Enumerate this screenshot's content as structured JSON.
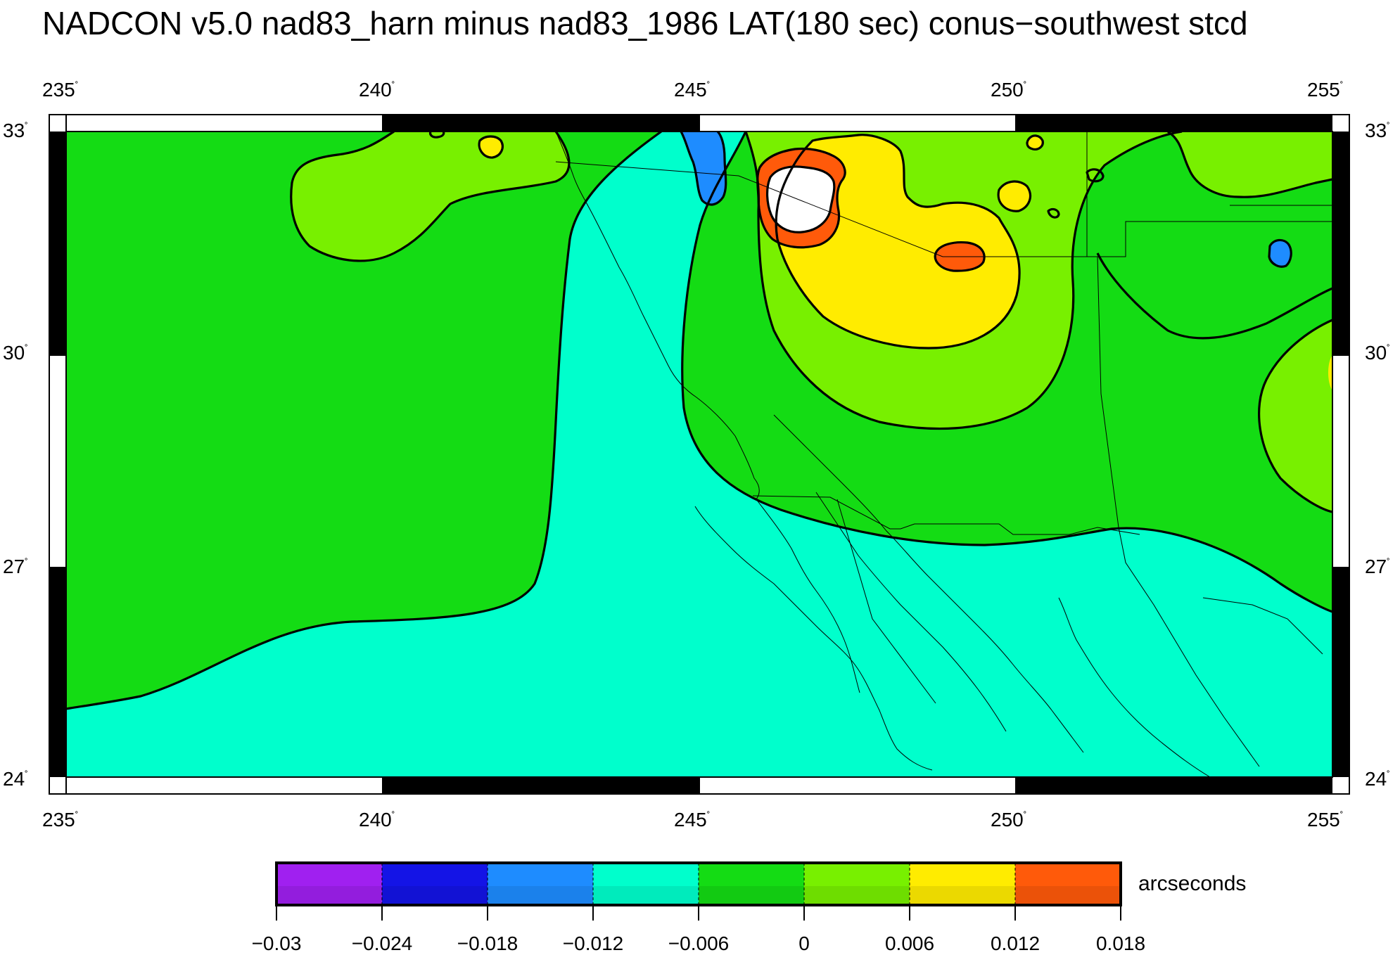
{
  "title": "NADCON v5.0 nad83_harn minus nad83_1986 LAT(180 sec) conus−southwest stcd",
  "lon_ticks": [
    "235",
    "240",
    "245",
    "250",
    "255"
  ],
  "lat_ticks": [
    "33",
    "30",
    "27",
    "24"
  ],
  "degree_symbol": "˚",
  "colorbar": {
    "unit": "arcseconds",
    "labels": [
      "−0.03",
      "−0.024",
      "−0.018",
      "−0.012",
      "−0.006",
      "0",
      "0.006",
      "0.012",
      "0.018"
    ],
    "colors": [
      "#a020f0",
      "#1414e6",
      "#1e8cff",
      "#00ffcc",
      "#14dc14",
      "#78f000",
      "#ffec00",
      "#ff5a0a"
    ]
  },
  "palette": {
    "cyan": "#00ffcc",
    "green": "#14dc14",
    "lime": "#78f000",
    "yellow": "#ffec00",
    "orange": "#ff5a0a",
    "blue": "#1e8cff",
    "white": "#ffffff"
  }
}
